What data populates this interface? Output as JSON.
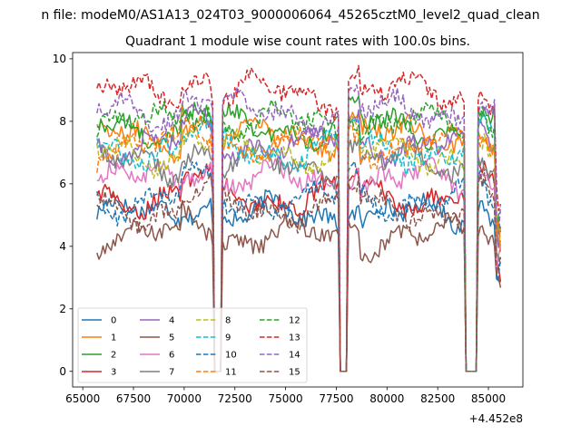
{
  "suptitle": "n file: modeM0/AS1A13_024T03_9000006064_45265cztM0_level2_quad_clean",
  "chart_data": {
    "type": "line",
    "title": "Quadrant 1 module wise count rates with 100.0s bins.",
    "xlabel": "",
    "ylabel": "",
    "x_offset_label": "+4.452e8",
    "xlim": [
      64500,
      86700
    ],
    "ylim": [
      -0.5,
      10.2
    ],
    "x_ticks": [
      65000,
      67500,
      70000,
      72500,
      75000,
      77500,
      80000,
      82500,
      85000
    ],
    "x_tick_labels": [
      "65000",
      "67500",
      "70000",
      "72500",
      "75000",
      "77500",
      "80000",
      "82500",
      "85000"
    ],
    "y_ticks": [
      0,
      2,
      4,
      6,
      8,
      10
    ],
    "y_tick_labels": [
      "0",
      "2",
      "4",
      "6",
      "8",
      "10"
    ],
    "x_range": [
      65700,
      85600
    ],
    "bin": 100,
    "dips": [
      {
        "from": 71500,
        "to": 71800
      },
      {
        "from": 77700,
        "to": 78000
      },
      {
        "from": 83900,
        "to": 84400
      }
    ],
    "legend_position": "lower-left",
    "series": [
      {
        "name": "0",
        "base": 5.0,
        "color": "#1f77b4",
        "dash": "solid"
      },
      {
        "name": "1",
        "base": 7.5,
        "color": "#ff7f0e",
        "dash": "solid"
      },
      {
        "name": "2",
        "base": 7.8,
        "color": "#2ca02c",
        "dash": "solid"
      },
      {
        "name": "3",
        "base": 5.6,
        "color": "#d62728",
        "dash": "solid"
      },
      {
        "name": "4",
        "base": 7.3,
        "color": "#9467bd",
        "dash": "solid"
      },
      {
        "name": "5",
        "base": 4.3,
        "color": "#8c564b",
        "dash": "solid"
      },
      {
        "name": "6",
        "base": 6.1,
        "color": "#e377c2",
        "dash": "solid"
      },
      {
        "name": "7",
        "base": 6.6,
        "color": "#7f7f7f",
        "dash": "solid"
      },
      {
        "name": "8",
        "base": 7.0,
        "color": "#bcbd22",
        "dash": "dashed"
      },
      {
        "name": "9",
        "base": 7.1,
        "color": "#17becf",
        "dash": "dashed"
      },
      {
        "name": "10",
        "base": 5.5,
        "color": "#1f77b4",
        "dash": "dashed"
      },
      {
        "name": "11",
        "base": 7.2,
        "color": "#ff7f0e",
        "dash": "dashed"
      },
      {
        "name": "12",
        "base": 7.9,
        "color": "#2ca02c",
        "dash": "dashed"
      },
      {
        "name": "13",
        "base": 8.9,
        "color": "#d62728",
        "dash": "dashed"
      },
      {
        "name": "14",
        "base": 8.3,
        "color": "#9467bd",
        "dash": "dashed"
      },
      {
        "name": "15",
        "base": 5.2,
        "color": "#8c564b",
        "dash": "dashed"
      }
    ]
  }
}
